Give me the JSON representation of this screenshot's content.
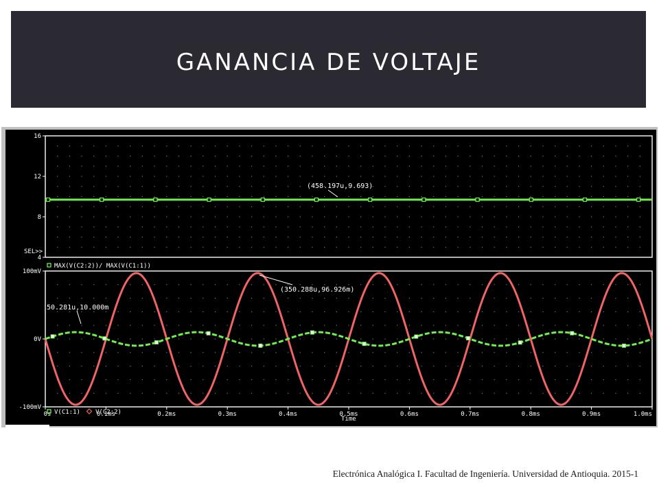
{
  "header": {
    "title": "GANANCIA DE VOLTAJE"
  },
  "footer": {
    "text": "Electrónica Analógica I.  Facultad de Ingeniería. Universidad de Antioquia.  2015-1"
  },
  "colors": {
    "plot_bg": "#000000",
    "frame": "#ffffff",
    "frame_outer": "#c0c0c0",
    "green": "#6fef4c",
    "red": "#f06464",
    "axis_text": "#ffffff",
    "grid_dot": "#7a7a7a",
    "title_bg": "#2b2a33"
  },
  "chart_data": [
    {
      "type": "line",
      "title": "",
      "xlabel": "",
      "ylabel": "",
      "ylim": [
        4,
        16
      ],
      "y_ticks": [
        "16",
        "12",
        "8",
        "4"
      ],
      "sel_label": "SEL>>",
      "xlim": [
        0,
        1.0
      ],
      "series": [
        {
          "name": "MAX(V(C2:2))/ MAX(V(C1:1))",
          "marker": "square",
          "x": [
            0.0,
            1.0
          ],
          "y": [
            9.693,
            9.693
          ]
        }
      ],
      "annotations": [
        {
          "text": "(458.197u,9.693)",
          "x": 0.458197,
          "y": 9.693
        }
      ]
    },
    {
      "type": "line",
      "title": "",
      "xlabel": "Time",
      "ylabel": "",
      "ylim": [
        -100,
        100
      ],
      "y_ticks": [
        "100mV",
        "0V",
        "-100mV"
      ],
      "xlim": [
        0,
        1.0
      ],
      "x_ticks": [
        "0s",
        "0.1ms",
        "0.2ms",
        "0.3ms",
        "0.4ms",
        "0.5ms",
        "0.6ms",
        "0.7ms",
        "0.8ms",
        "0.9ms",
        "1.0ms"
      ],
      "series": [
        {
          "name": "V(C1:1)",
          "marker": "square",
          "amplitude_mV": 10.0,
          "frequency_kHz": 5,
          "phase": "sine"
        },
        {
          "name": "V(C2:2)",
          "marker": "diamond",
          "amplitude_mV": 96.926,
          "frequency_kHz": 5,
          "phase": "inverted"
        }
      ],
      "annotations": [
        {
          "text": "(350.288u,96.926m)",
          "x": 0.350288,
          "y": 96.926
        },
        {
          "text": "50.281u,10.000m",
          "x": 0.050281,
          "y": 10.0
        }
      ]
    }
  ]
}
